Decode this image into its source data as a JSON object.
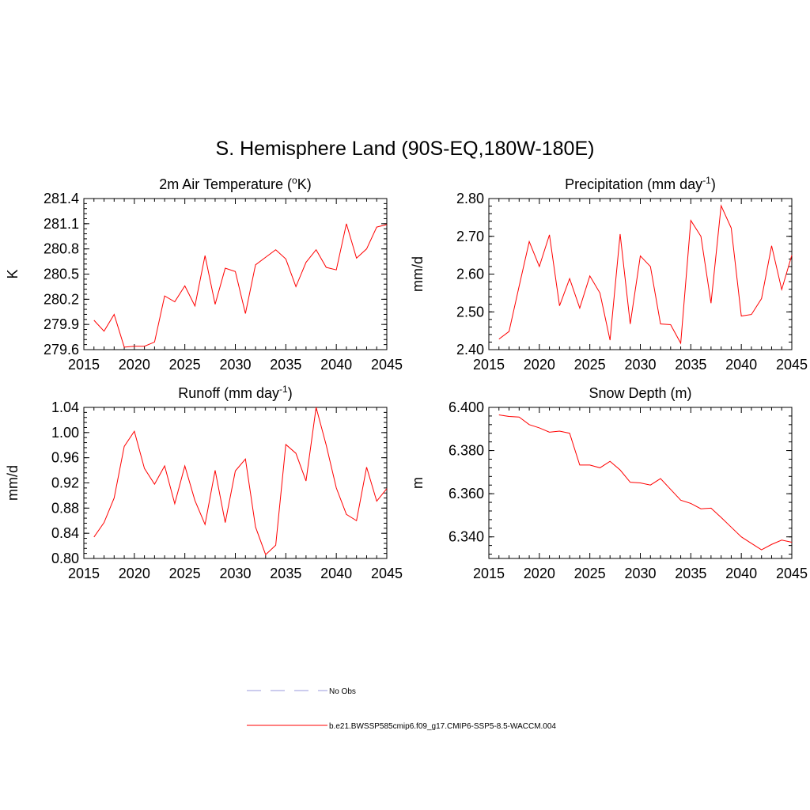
{
  "figure": {
    "title": "S. Hemisphere Land (90S-EQ,180W-180E)"
  },
  "colors": {
    "series": "#ff0000",
    "obs": "#9999dd",
    "axis": "#000000"
  },
  "chart_data": [
    {
      "type": "line",
      "title": "2m Air Temperature (",
      "title_sup": "o",
      "title_after": "K)",
      "ylabel": "K",
      "xlim": [
        2015,
        2045
      ],
      "ylim": [
        279.6,
        281.4
      ],
      "xticks": [
        2015,
        2020,
        2025,
        2030,
        2035,
        2040,
        2045
      ],
      "yticks": [
        "279.6",
        "279.9",
        "280.2",
        "280.5",
        "280.8",
        "281.1",
        "281.4"
      ],
      "x": [
        2016,
        2017,
        2018,
        2019,
        2020,
        2021,
        2022,
        2023,
        2024,
        2025,
        2026,
        2027,
        2028,
        2029,
        2030,
        2031,
        2032,
        2033,
        2034,
        2035,
        2036,
        2037,
        2038,
        2039,
        2040,
        2041,
        2042,
        2043,
        2044,
        2045
      ],
      "values": [
        279.95,
        279.82,
        280.02,
        279.63,
        279.64,
        279.64,
        279.69,
        280.24,
        280.17,
        280.36,
        280.12,
        280.72,
        280.14,
        280.57,
        280.53,
        280.03,
        280.61,
        280.7,
        280.79,
        280.68,
        280.35,
        280.64,
        280.79,
        280.58,
        280.55,
        281.1,
        280.69,
        280.8,
        281.06,
        281.09
      ],
      "series_name": "b.e21.BWSSP585cmip6.f09_g17.CMIP6-SSP5-8.5-WACCM.004"
    },
    {
      "type": "line",
      "title": "Precipitation (mm day",
      "title_sup": "-1",
      "title_after": ")",
      "ylabel": "mm/d",
      "xlim": [
        2015,
        2045
      ],
      "ylim": [
        2.4,
        2.8
      ],
      "xticks": [
        2015,
        2020,
        2025,
        2030,
        2035,
        2040,
        2045
      ],
      "yticks": [
        "2.40",
        "2.50",
        "2.60",
        "2.70",
        "2.80"
      ],
      "x": [
        2016,
        2017,
        2018,
        2019,
        2020,
        2021,
        2022,
        2023,
        2024,
        2025,
        2026,
        2027,
        2028,
        2029,
        2030,
        2031,
        2032,
        2033,
        2034,
        2035,
        2036,
        2037,
        2038,
        2039,
        2040,
        2041,
        2042,
        2043,
        2044,
        2045
      ],
      "values": [
        2.428,
        2.448,
        2.568,
        2.686,
        2.62,
        2.704,
        2.516,
        2.588,
        2.51,
        2.595,
        2.55,
        2.425,
        2.706,
        2.468,
        2.648,
        2.62,
        2.468,
        2.466,
        2.417,
        2.742,
        2.7,
        2.523,
        2.781,
        2.722,
        2.489,
        2.493,
        2.535,
        2.675,
        2.559,
        2.65
      ],
      "series_name": "b.e21.BWSSP585cmip6.f09_g17.CMIP6-SSP5-8.5-WACCM.004"
    },
    {
      "type": "line",
      "title": "Runoff (mm day",
      "title_sup": "-1",
      "title_after": ")",
      "ylabel": "mm/d",
      "xlim": [
        2015,
        2045
      ],
      "ylim": [
        0.8,
        1.04
      ],
      "xticks": [
        2015,
        2020,
        2025,
        2030,
        2035,
        2040,
        2045
      ],
      "yticks": [
        "0.80",
        "0.84",
        "0.88",
        "0.92",
        "0.96",
        "1.00",
        "1.04"
      ],
      "x": [
        2016,
        2017,
        2018,
        2019,
        2020,
        2021,
        2022,
        2023,
        2024,
        2025,
        2026,
        2027,
        2028,
        2029,
        2030,
        2031,
        2032,
        2033,
        2034,
        2035,
        2036,
        2037,
        2038,
        2039,
        2040,
        2041,
        2042,
        2043,
        2044,
        2045
      ],
      "values": [
        0.834,
        0.857,
        0.896,
        0.978,
        1.002,
        0.943,
        0.918,
        0.947,
        0.887,
        0.947,
        0.892,
        0.854,
        0.94,
        0.857,
        0.939,
        0.958,
        0.85,
        0.806,
        0.821,
        0.981,
        0.967,
        0.923,
        1.04,
        0.98,
        0.912,
        0.87,
        0.86,
        0.945,
        0.891,
        0.911
      ],
      "series_name": "b.e21.BWSSP585cmip6.f09_g17.CMIP6-SSP5-8.5-WACCM.004"
    },
    {
      "type": "line",
      "title": "Snow Depth (m)",
      "title_sup": "",
      "title_after": "",
      "ylabel": "m",
      "xlim": [
        2015,
        2045
      ],
      "ylim": [
        6.33,
        6.4
      ],
      "xticks": [
        2015,
        2020,
        2025,
        2030,
        2035,
        2040,
        2045
      ],
      "yticks": [
        "6.340",
        "6.360",
        "6.380",
        "6.400"
      ],
      "ytick_values": [
        6.34,
        6.36,
        6.38,
        6.4
      ],
      "x": [
        2016,
        2017,
        2018,
        2019,
        2020,
        2021,
        2022,
        2023,
        2024,
        2025,
        2026,
        2027,
        2028,
        2029,
        2030,
        2031,
        2032,
        2033,
        2034,
        2035,
        2036,
        2037,
        2038,
        2039,
        2040,
        2041,
        2042,
        2043,
        2044,
        2045
      ],
      "values": [
        6.3965,
        6.3958,
        6.3955,
        6.392,
        6.3905,
        6.3885,
        6.389,
        6.388,
        6.3733,
        6.3733,
        6.372,
        6.375,
        6.371,
        6.3653,
        6.365,
        6.364,
        6.367,
        6.362,
        6.357,
        6.3555,
        6.353,
        6.3533,
        6.349,
        6.3445,
        6.34,
        6.337,
        6.334,
        6.3365,
        6.3385,
        6.3375
      ],
      "series_name": "b.e21.BWSSP585cmip6.f09_g17.CMIP6-SSP5-8.5-WACCM.004"
    }
  ],
  "legend": {
    "items": [
      {
        "label": "No Obs",
        "style": "dashed"
      },
      {
        "label": "b.e21.BWSSP585cmip6.f09_g17.CMIP6-SSP5-8.5-WACCM.004",
        "style": "solid"
      }
    ]
  }
}
